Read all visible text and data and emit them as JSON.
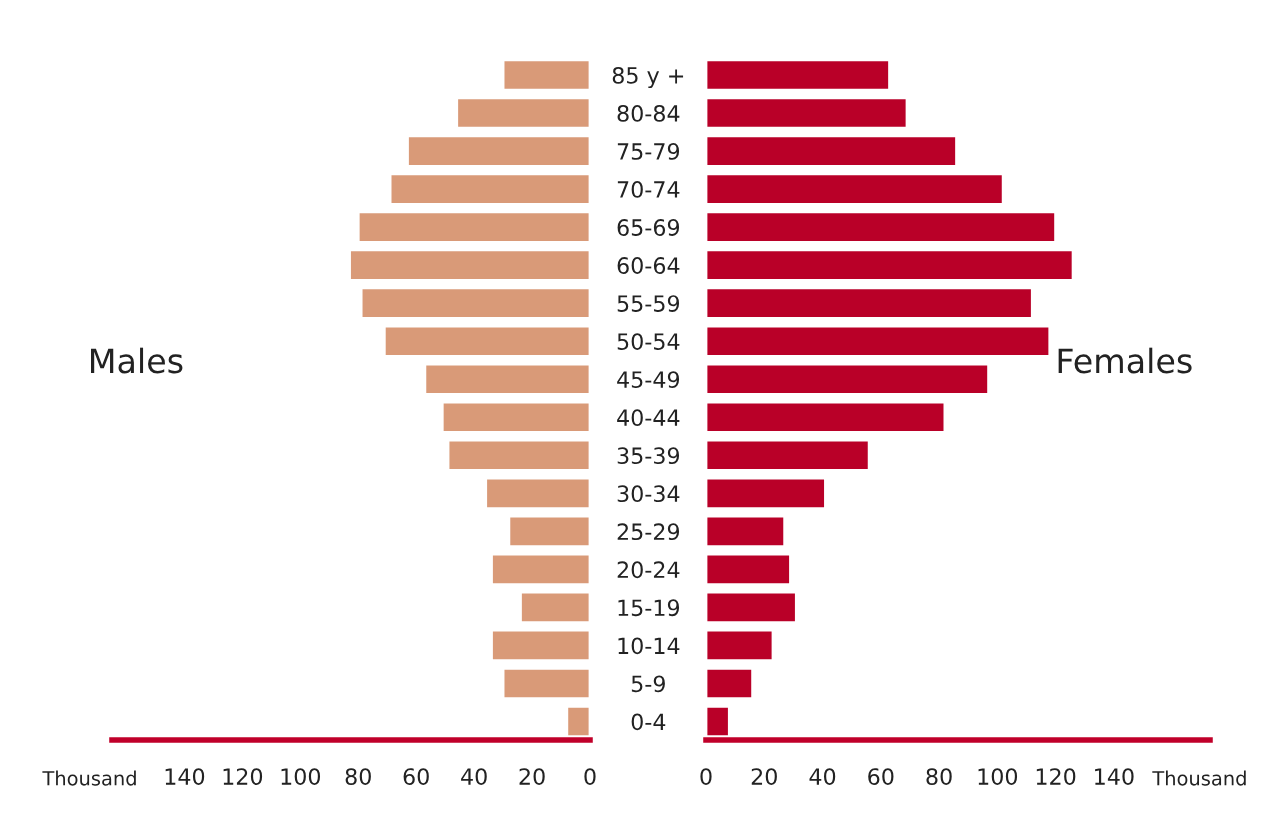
{
  "chart_data": [
    {
      "type": "bar",
      "orientation": "horizontal",
      "xlabel": "Thousand",
      "legend": false,
      "grid": false,
      "categories": [
        "85 y +",
        "80-84",
        "75-79",
        "70-74",
        "65-69",
        "60-64",
        "55-59",
        "50-54",
        "45-49",
        "40-44",
        "35-39",
        "30-34",
        "25-29",
        "20-24",
        "15-19",
        "10-14",
        "5-9",
        "0-4"
      ],
      "series": [
        {
          "name": "Males",
          "color": "#d99a78",
          "values": [
            30,
            46,
            63,
            69,
            80,
            83,
            79,
            71,
            57,
            51,
            49,
            36,
            28,
            34,
            24,
            34,
            30,
            8
          ]
        }
      ],
      "xlim": [
        165,
        0
      ],
      "xticks": [
        140,
        120,
        100,
        80,
        60,
        40,
        20,
        0
      ]
    },
    {
      "type": "bar",
      "orientation": "horizontal",
      "xlabel": "Thousand",
      "legend": false,
      "grid": false,
      "categories": [
        null,
        null,
        null,
        null,
        null,
        null,
        null,
        null,
        null,
        null,
        null,
        null,
        null,
        null,
        null,
        null,
        null,
        null
      ],
      "series": [
        {
          "name": "Females",
          "color": "#b90028",
          "values": [
            63,
            69,
            86,
            102,
            120,
            126,
            112,
            118,
            97,
            82,
            56,
            41,
            27,
            29,
            31,
            23,
            16,
            8
          ]
        }
      ],
      "xlim": [
        0,
        173
      ],
      "xticks": [
        0,
        20,
        40,
        60,
        80,
        100,
        120,
        140
      ]
    }
  ]
}
